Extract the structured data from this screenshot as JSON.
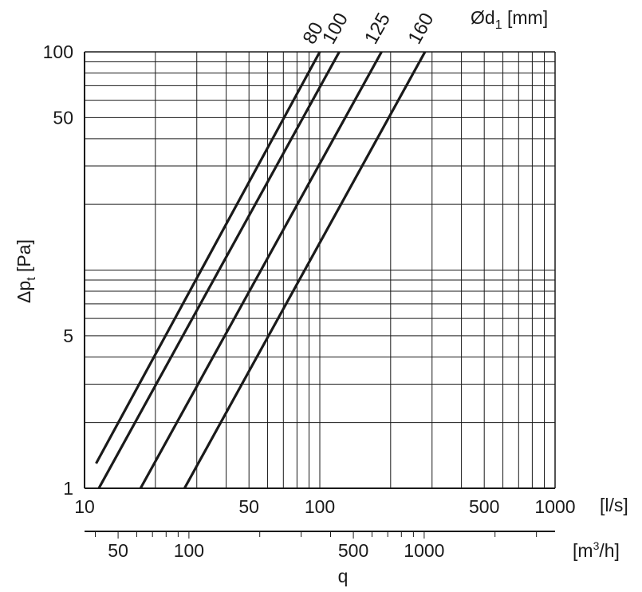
{
  "chart_data": {
    "type": "line",
    "x_scale": "log",
    "y_scale": "log",
    "grid": true,
    "xlim": [
      10,
      1000
    ],
    "ylim": [
      1,
      100
    ],
    "x_unit_label": "[l/s]",
    "x_ticks": [
      {
        "value": 10,
        "label": "10"
      },
      {
        "value": 50,
        "label": "50"
      },
      {
        "value": 100,
        "label": "100"
      },
      {
        "value": 500,
        "label": "500"
      },
      {
        "value": 1000,
        "label": "1000"
      }
    ],
    "x2_unit_label": "[m³/h]",
    "x2_unit_text": "[m",
    "x2_unit_sup": "3",
    "x2_unit_tail": "/h]",
    "x2_ticks": [
      {
        "value": 50,
        "label": "50"
      },
      {
        "value": 100,
        "label": "100"
      },
      {
        "value": 500,
        "label": "500"
      },
      {
        "value": 1000,
        "label": "1000"
      }
    ],
    "x2_title": "q",
    "y_ticks": [
      {
        "value": 1,
        "label": "1"
      },
      {
        "value": 5,
        "label": "5"
      },
      {
        "value": 50,
        "label": "50"
      },
      {
        "value": 100,
        "label": "100"
      }
    ],
    "ylabel": "Δpt [Pa]",
    "ylabel_main": "Δp",
    "ylabel_sub": "t",
    "ylabel_unit": " [Pa]",
    "legend_title": "Ød1 [mm]",
    "legend_main": "Ød",
    "legend_sub": "1",
    "legend_unit": " [mm]",
    "series": [
      {
        "name": "80",
        "x": [
          11.2,
          100
        ],
        "y": [
          1.3,
          100
        ]
      },
      {
        "name": "100",
        "x": [
          11.5,
          121
        ],
        "y": [
          1,
          100
        ]
      },
      {
        "name": "125",
        "x": [
          17.3,
          183
        ],
        "y": [
          1,
          100
        ]
      },
      {
        "name": "160",
        "x": [
          26.6,
          280
        ],
        "y": [
          1,
          100
        ]
      }
    ]
  }
}
